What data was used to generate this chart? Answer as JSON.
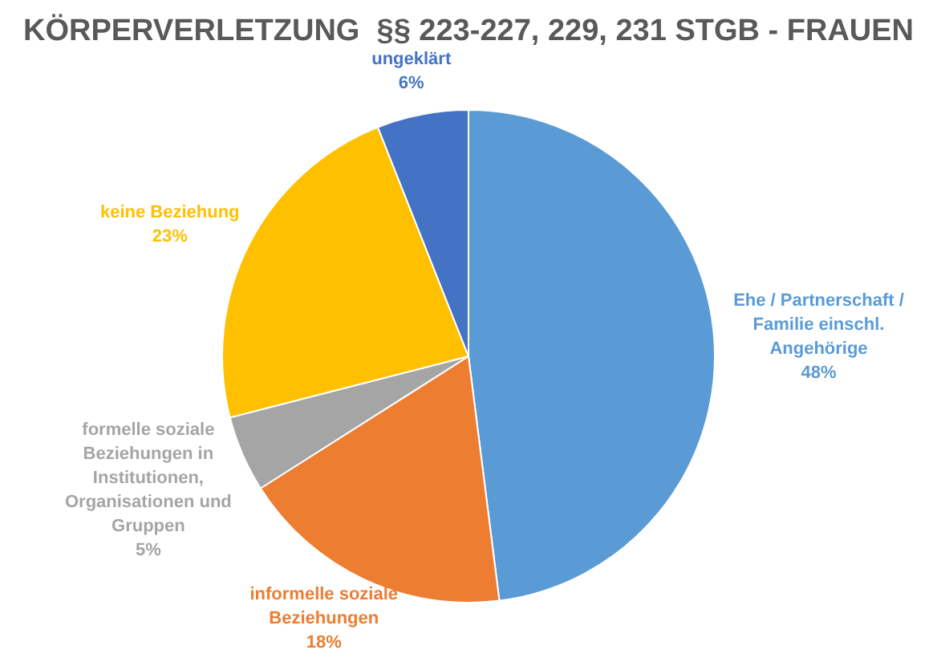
{
  "chart_data": {
    "type": "pie",
    "title": "KÖRPERVERLETZUNG  §§ 223-227, 229, 231 STGB - FRAUEN",
    "categories": [
      "Ehe / Partnerschaft / Familie einschl. Angehörige",
      "informelle soziale Beziehungen",
      "formelle soziale Beziehungen in Institutionen, Organisationen und Gruppen",
      "keine Beziehung",
      "ungeklärt"
    ],
    "values": [
      48,
      18,
      5,
      23,
      6
    ],
    "colors": [
      "#5b9bd5",
      "#ed7d31",
      "#a5a5a5",
      "#ffc000",
      "#4472c4"
    ],
    "value_labels": [
      "48%",
      "18%",
      "5%",
      "23%",
      "6%"
    ],
    "legend": false
  }
}
